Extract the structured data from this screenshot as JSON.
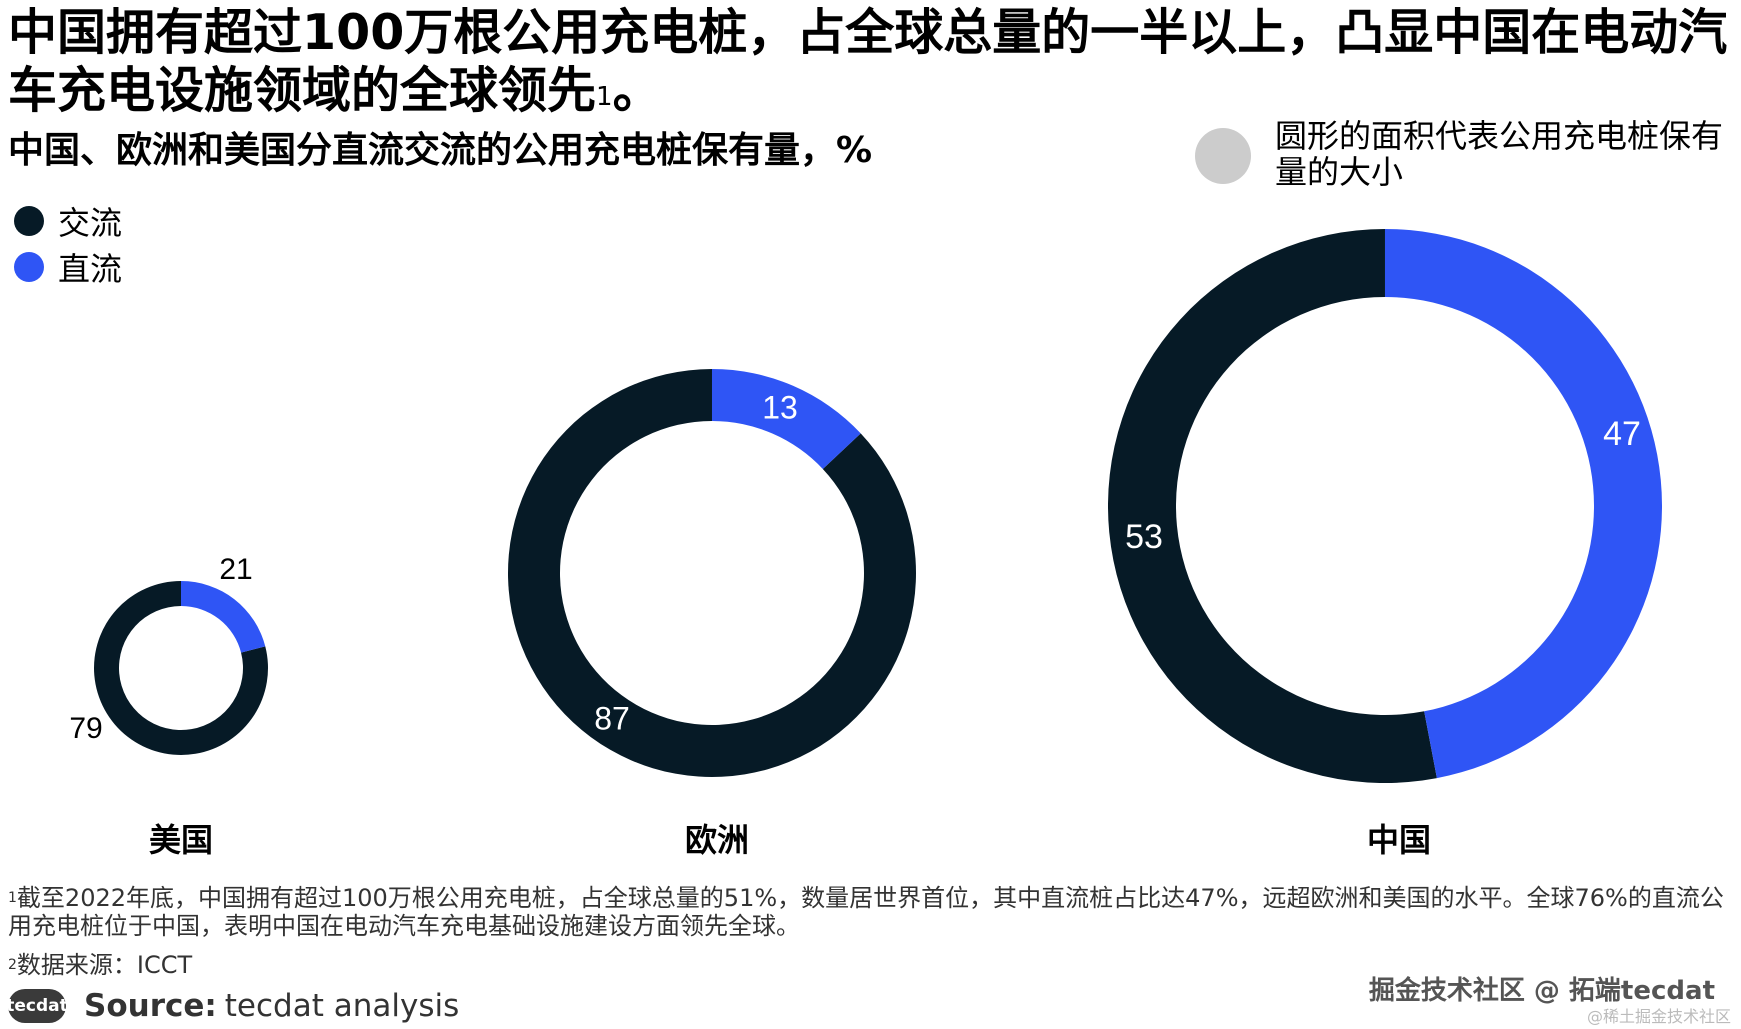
{
  "title": "中国拥有超过100万根公用充电桩，占全球总量的一半以上，凸显中国在电动汽车充电设施领域的全球领先",
  "title_footnote_mark": "1",
  "title_end": "。",
  "subtitle": "中国、欧洲和美国分直流交流的公用充电桩保有量，%",
  "size_note": "圆形的面积代表公用充电桩保有量的大小",
  "colors": {
    "ac": "#061a26",
    "dc": "#2f55f5",
    "size_dot": "#cccccc"
  },
  "chart_data": {
    "type": "donut",
    "unit": "%",
    "series": [
      {
        "name": "交流",
        "color": "#061a26"
      },
      {
        "name": "直流",
        "color": "#2f55f5"
      }
    ],
    "categories": [
      "美国",
      "欧洲",
      "中国"
    ],
    "values": [
      {
        "category": "美国",
        "交流": 79,
        "直流": 21
      },
      {
        "category": "欧洲",
        "交流": 87,
        "直流": 13
      },
      {
        "category": "中国",
        "交流": 53,
        "直流": 47
      }
    ],
    "size_encoding": "圆形的面积代表公用充电桩保有量的大小"
  },
  "footnote1_mark": "1",
  "footnote1": "截至2022年底，中国拥有超过100万根公用充电桩，占全球总量的51%，数量居世界首位，其中直流桩占比达47%，远超欧洲和美国的水平。全球76%的直流公用充电桩位于中国，表明中国在电动汽车充电基础设施建设方面领先全球。",
  "footnote2_mark": "2",
  "footnote2": "数据来源：ICCT",
  "source_logo": "tecdat",
  "source_label": "Source:",
  "source_value": "tecdat analysis",
  "watermark_main": "掘金技术社区 @ 拓端tecdat",
  "watermark_sub": "@稀土掘金技术社区"
}
